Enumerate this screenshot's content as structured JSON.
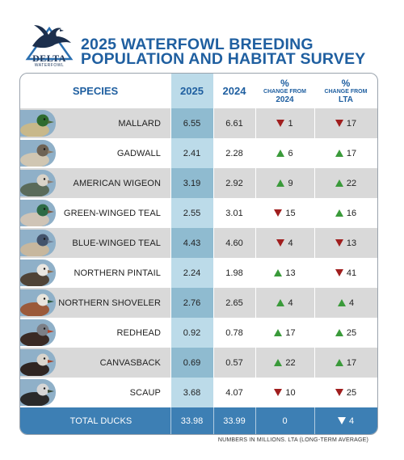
{
  "logo": {
    "line1": "DELTA",
    "line2": "WATERFOWL"
  },
  "title": {
    "line1": "2025 WATERFOWL BREEDING",
    "line2": "POPULATION AND HABITAT SURVEY"
  },
  "headers": {
    "species": "SPECIES",
    "y2025": "2025",
    "y2024": "2024",
    "change_pct": "%",
    "change_label": "CHANGE FROM",
    "change_year": "2024",
    "lta_pct": "%",
    "lta_label": "CHANGE FROM",
    "lta_base": "LTA"
  },
  "rows": [
    {
      "species": "MALLARD",
      "v2025": "6.55",
      "v2024": "6.61",
      "chg": "1",
      "chg_dir": "down",
      "lta": "17",
      "lta_dir": "down",
      "photo": "mallard-photo"
    },
    {
      "species": "GADWALL",
      "v2025": "2.41",
      "v2024": "2.28",
      "chg": "6",
      "chg_dir": "up",
      "lta": "17",
      "lta_dir": "up",
      "photo": "gadwall-photo"
    },
    {
      "species": "AMERICAN WIGEON",
      "v2025": "3.19",
      "v2024": "2.92",
      "chg": "9",
      "chg_dir": "up",
      "lta": "22",
      "lta_dir": "up",
      "photo": "american-wigeon-photo"
    },
    {
      "species": "GREEN-WINGED TEAL",
      "v2025": "2.55",
      "v2024": "3.01",
      "chg": "15",
      "chg_dir": "down",
      "lta": "16",
      "lta_dir": "up",
      "photo": "green-winged-teal-photo"
    },
    {
      "species": "BLUE-WINGED TEAL",
      "v2025": "4.43",
      "v2024": "4.60",
      "chg": "4",
      "chg_dir": "down",
      "lta": "13",
      "lta_dir": "down",
      "photo": "blue-winged-teal-photo"
    },
    {
      "species": "NORTHERN PINTAIL",
      "v2025": "2.24",
      "v2024": "1.98",
      "chg": "13",
      "chg_dir": "up",
      "lta": "41",
      "lta_dir": "down",
      "photo": "northern-pintail-photo"
    },
    {
      "species": "NORTHERN SHOVELER",
      "v2025": "2.76",
      "v2024": "2.65",
      "chg": "4",
      "chg_dir": "up",
      "lta": "4",
      "lta_dir": "up",
      "photo": "northern-shoveler-photo"
    },
    {
      "species": "REDHEAD",
      "v2025": "0.92",
      "v2024": "0.78",
      "chg": "17",
      "chg_dir": "up",
      "lta": "25",
      "lta_dir": "up",
      "photo": "redhead-photo"
    },
    {
      "species": "CANVASBACK",
      "v2025": "0.69",
      "v2024": "0.57",
      "chg": "22",
      "chg_dir": "up",
      "lta": "17",
      "lta_dir": "up",
      "photo": "canvasback-photo"
    },
    {
      "species": "SCAUP",
      "v2025": "3.68",
      "v2024": "4.07",
      "chg": "10",
      "chg_dir": "down",
      "lta": "25",
      "lta_dir": "down",
      "photo": "scaup-photo"
    }
  ],
  "total": {
    "label": "TOTAL DUCKS",
    "v2025": "33.98",
    "v2024": "33.99",
    "chg": "0",
    "lta": "4",
    "lta_dir": "down"
  },
  "footnote": "NUMBERS IN MILLIONS. LTA (LONG-TERM AVERAGE)",
  "colors": {
    "title_blue": "#1f5fa0",
    "highlight_2025": "#bcdbe9",
    "highlight_2025_shaded": "#8fbbd0",
    "row_shade": "#d9d9d9",
    "total_bar": "#3d7fb4",
    "up_green": "#3a9a3a",
    "down_red": "#a01e1e"
  },
  "chart_data": {
    "type": "table",
    "title": "2025 WATERFOWL BREEDING POPULATION AND HABITAT SURVEY",
    "columns": [
      "SPECIES",
      "2025",
      "2024",
      "% CHANGE FROM 2024",
      "% CHANGE FROM LTA"
    ],
    "units": "NUMBERS IN MILLIONS",
    "rows": [
      [
        "MALLARD",
        6.55,
        6.61,
        -1,
        -17
      ],
      [
        "GADWALL",
        2.41,
        2.28,
        6,
        17
      ],
      [
        "AMERICAN WIGEON",
        3.19,
        2.92,
        9,
        22
      ],
      [
        "GREEN-WINGED TEAL",
        2.55,
        3.01,
        -15,
        16
      ],
      [
        "BLUE-WINGED TEAL",
        4.43,
        4.6,
        -4,
        -13
      ],
      [
        "NORTHERN PINTAIL",
        2.24,
        1.98,
        13,
        -41
      ],
      [
        "NORTHERN SHOVELER",
        2.76,
        2.65,
        4,
        4
      ],
      [
        "REDHEAD",
        0.92,
        0.78,
        17,
        25
      ],
      [
        "CANVASBACK",
        0.69,
        0.57,
        22,
        17
      ],
      [
        "SCAUP",
        3.68,
        4.07,
        -10,
        -25
      ]
    ],
    "total": [
      "TOTAL DUCKS",
      33.98,
      33.99,
      0,
      -4
    ]
  }
}
